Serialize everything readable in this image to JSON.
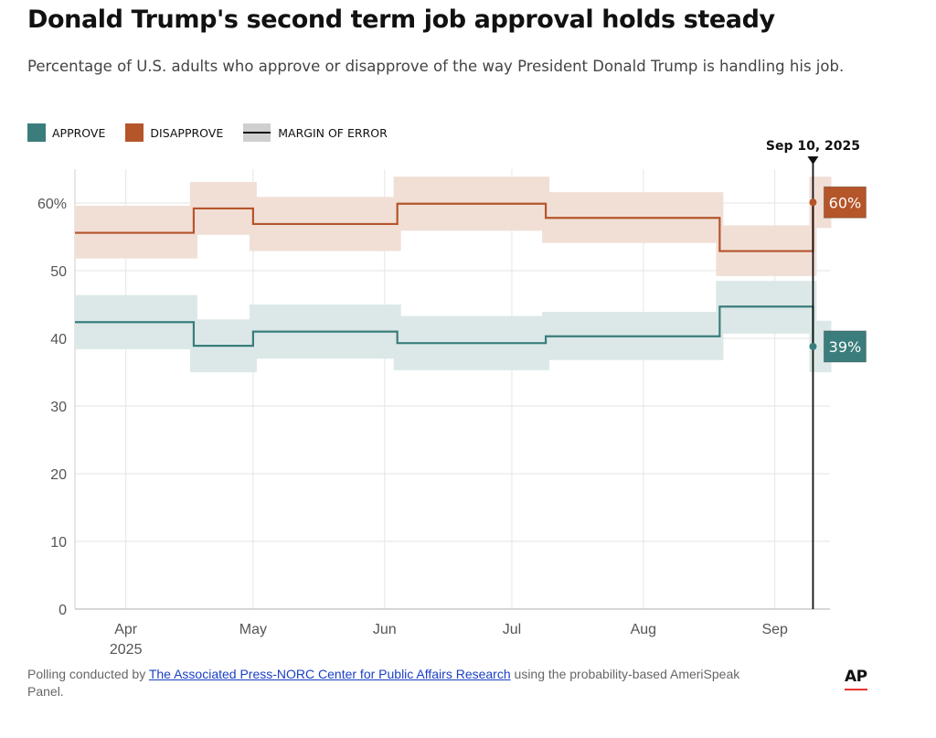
{
  "title": "Donald Trump's second term job approval holds steady",
  "subtitle": "Percentage of U.S. adults who approve or disapprove of the way President Donald Trump is handling his job.",
  "legend": {
    "approve": "APPROVE",
    "disapprove": "DISAPPROVE",
    "moe": "MARGIN OF ERROR"
  },
  "colors": {
    "approve": "#3a7d7c",
    "approve_band": "#dbe8e7",
    "disapprove": "#b5552a",
    "disapprove_band": "#f1dfd6"
  },
  "chart_data": {
    "type": "line",
    "step": true,
    "x_range": [
      "2025-03-20",
      "2025-09-14"
    ],
    "y_range": [
      0,
      65
    ],
    "y_ticks": [
      {
        "value": 0,
        "label": "0"
      },
      {
        "value": 10,
        "label": "10"
      },
      {
        "value": 20,
        "label": "20"
      },
      {
        "value": 30,
        "label": "30"
      },
      {
        "value": 40,
        "label": "40"
      },
      {
        "value": 50,
        "label": "50"
      },
      {
        "value": 60,
        "label": "60%"
      }
    ],
    "x_ticks": [
      {
        "date": "2025-04-01",
        "label": "Apr",
        "sublabel": "2025"
      },
      {
        "date": "2025-05-01",
        "label": "May"
      },
      {
        "date": "2025-06-01",
        "label": "Jun"
      },
      {
        "date": "2025-07-01",
        "label": "Jul"
      },
      {
        "date": "2025-08-01",
        "label": "Aug"
      },
      {
        "date": "2025-09-01",
        "label": "Sep"
      }
    ],
    "grid": true,
    "series": [
      {
        "name": "APPROVE",
        "color": "#3a7d7c",
        "points": [
          {
            "date": "2025-03-20",
            "value": 42.4,
            "low": 38.4,
            "high": 46.4
          },
          {
            "date": "2025-04-17",
            "value": 38.9,
            "low": 35.0,
            "high": 42.8
          },
          {
            "date": "2025-05-01",
            "value": 41.0,
            "low": 37.0,
            "high": 45.0
          },
          {
            "date": "2025-06-04",
            "value": 39.3,
            "low": 35.3,
            "high": 43.3
          },
          {
            "date": "2025-07-09",
            "value": 40.3,
            "low": 36.8,
            "high": 43.9
          },
          {
            "date": "2025-08-19",
            "value": 44.7,
            "low": 40.7,
            "high": 48.5
          },
          {
            "date": "2025-09-10",
            "value": 38.8,
            "low": 35.0,
            "high": 42.6
          }
        ]
      },
      {
        "name": "DISAPPROVE",
        "color": "#b5552a",
        "points": [
          {
            "date": "2025-03-20",
            "value": 55.6,
            "low": 51.8,
            "high": 59.6
          },
          {
            "date": "2025-04-17",
            "value": 59.2,
            "low": 55.3,
            "high": 63.1
          },
          {
            "date": "2025-05-01",
            "value": 56.9,
            "low": 52.9,
            "high": 60.9
          },
          {
            "date": "2025-06-04",
            "value": 59.9,
            "low": 55.9,
            "high": 63.9
          },
          {
            "date": "2025-07-09",
            "value": 57.8,
            "low": 54.1,
            "high": 61.6
          },
          {
            "date": "2025-08-19",
            "value": 52.9,
            "low": 49.2,
            "high": 56.7
          },
          {
            "date": "2025-09-10",
            "value": 60.1,
            "low": 56.3,
            "high": 63.9
          }
        ]
      }
    ],
    "marker": {
      "date": "2025-09-10",
      "label": "Sep 10, 2025"
    },
    "end_labels": {
      "approve": "39%",
      "disapprove": "60%"
    }
  },
  "footnote": {
    "pre": "Polling conducted by ",
    "link": "The Associated Press-NORC Center for Public Affairs Research",
    "post": " using the probability-based AmeriSpeak Panel."
  },
  "logo": "AP"
}
